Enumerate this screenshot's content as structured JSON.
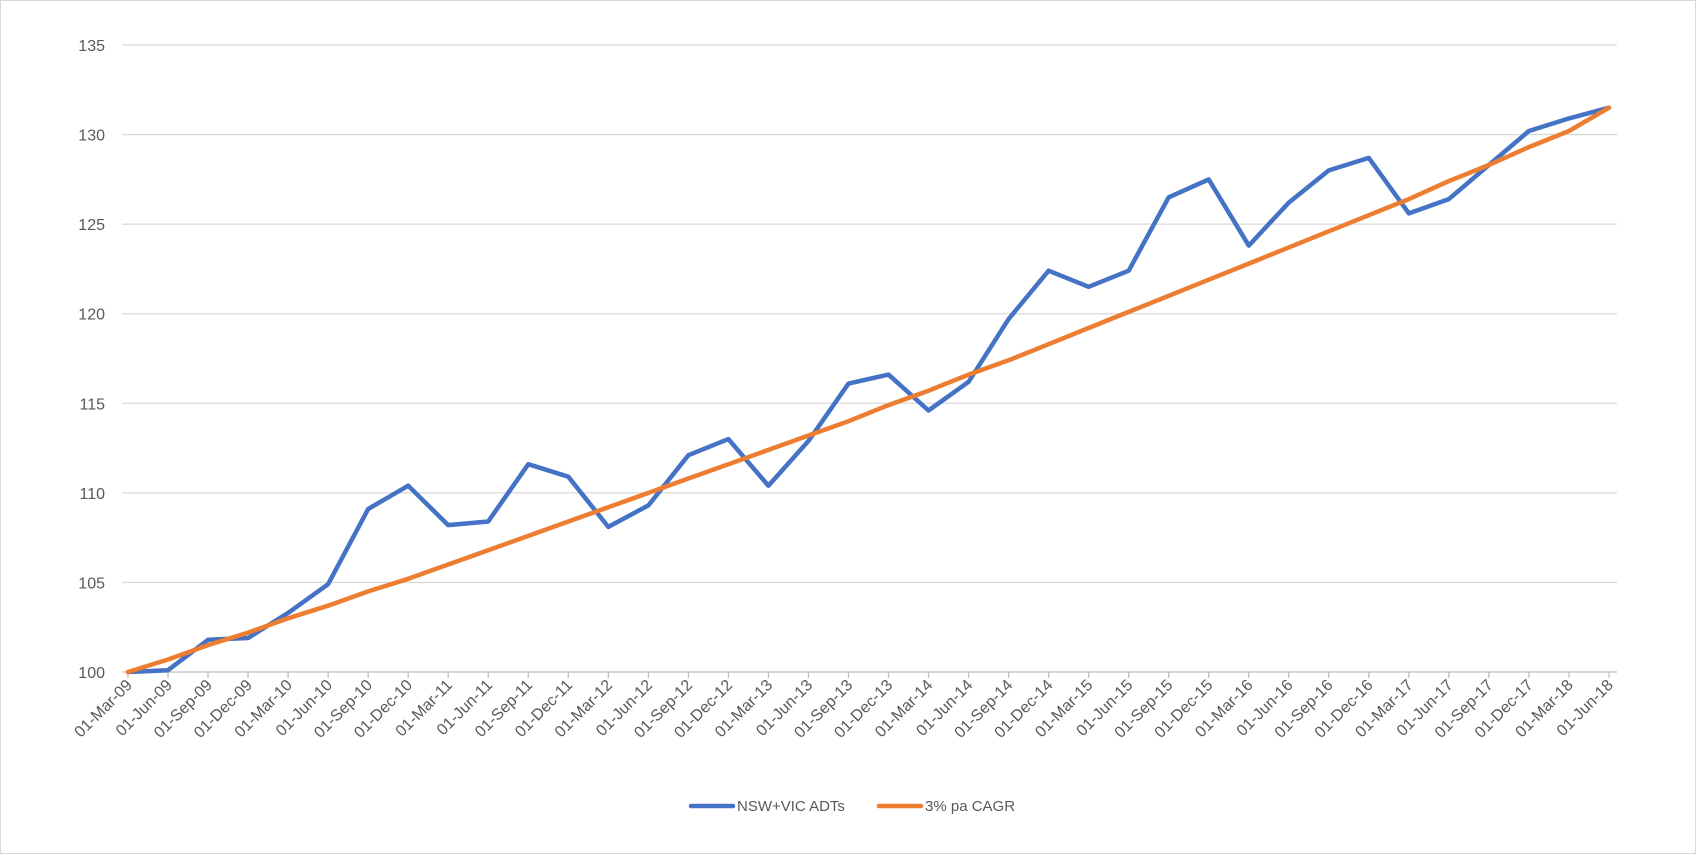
{
  "chart_data": {
    "type": "line",
    "title": "",
    "xlabel": "",
    "ylabel": "",
    "ylim": [
      100,
      135
    ],
    "yticks": [
      100,
      105,
      110,
      115,
      120,
      125,
      130,
      135
    ],
    "grid": true,
    "legend_position": "bottom",
    "categories": [
      "01-Mar-09",
      "01-Jun-09",
      "01-Sep-09",
      "01-Dec-09",
      "01-Mar-10",
      "01-Jun-10",
      "01-Sep-10",
      "01-Dec-10",
      "01-Mar-11",
      "01-Jun-11",
      "01-Sep-11",
      "01-Dec-11",
      "01-Mar-12",
      "01-Jun-12",
      "01-Sep-12",
      "01-Dec-12",
      "01-Mar-13",
      "01-Jun-13",
      "01-Sep-13",
      "01-Dec-13",
      "01-Mar-14",
      "01-Jun-14",
      "01-Sep-14",
      "01-Dec-14",
      "01-Mar-15",
      "01-Jun-15",
      "01-Sep-15",
      "01-Dec-15",
      "01-Mar-16",
      "01-Jun-16",
      "01-Sep-16",
      "01-Dec-16",
      "01-Mar-17",
      "01-Jun-17",
      "01-Sep-17",
      "01-Dec-17",
      "01-Mar-18",
      "01-Jun-18"
    ],
    "series": [
      {
        "name": "NSW+VIC ADTs",
        "color": "#4472c4",
        "values": [
          100.0,
          100.1,
          101.8,
          101.9,
          103.3,
          104.9,
          109.1,
          110.4,
          108.2,
          108.4,
          111.6,
          110.9,
          108.1,
          109.3,
          112.1,
          113.0,
          110.4,
          112.9,
          116.1,
          116.6,
          114.6,
          116.2,
          119.7,
          122.4,
          121.5,
          122.4,
          126.5,
          127.5,
          123.8,
          126.2,
          128.0,
          128.7,
          125.6,
          126.4,
          128.3,
          130.2,
          130.9,
          131.5
        ]
      },
      {
        "name": "3% pa CAGR",
        "color": "#ed7d31",
        "values": [
          100.0,
          100.7,
          101.5,
          102.2,
          103.0,
          103.7,
          104.5,
          105.2,
          106.0,
          106.8,
          107.6,
          108.4,
          109.2,
          110.0,
          110.8,
          111.6,
          112.4,
          113.2,
          114.0,
          114.9,
          115.7,
          116.6,
          117.4,
          118.3,
          119.2,
          120.1,
          121.0,
          121.9,
          122.8,
          123.7,
          124.6,
          125.5,
          126.4,
          127.4,
          128.3,
          129.3,
          130.2,
          131.5
        ]
      }
    ],
    "gridline_color": "#d9d9d9",
    "axis_color": "#bfbfbf"
  }
}
